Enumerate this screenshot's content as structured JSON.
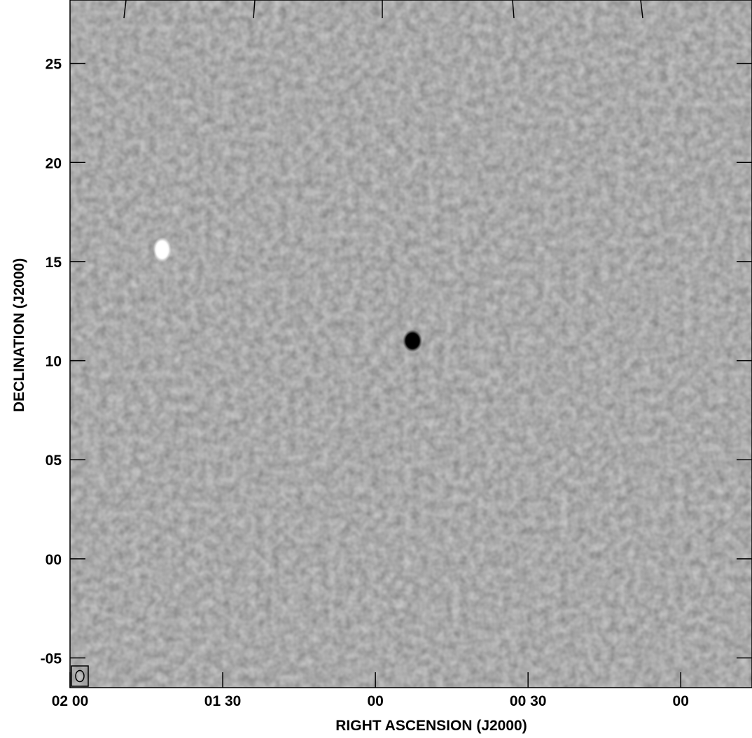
{
  "chart_data": {
    "type": "heatmap",
    "title": "",
    "xlabel": "RIGHT ASCENSION (J2000)",
    "ylabel": "DECLINATION (J2000)",
    "x_ticks": [
      {
        "label": "02 00",
        "ra_seconds": 120
      },
      {
        "label": "01 30",
        "ra_seconds": 90
      },
      {
        "label": "00",
        "ra_seconds": 60
      },
      {
        "label": "00 30",
        "ra_seconds": 30
      },
      {
        "label": "00",
        "ra_seconds": 0
      }
    ],
    "y_ticks": [
      {
        "label": "25",
        "arcmin": 25
      },
      {
        "label": "20",
        "arcmin": 20
      },
      {
        "label": "15",
        "arcmin": 15
      },
      {
        "label": "10",
        "arcmin": 10
      },
      {
        "label": "05",
        "arcmin": 5
      },
      {
        "label": "00",
        "arcmin": 0
      },
      {
        "label": "-05",
        "arcmin": -5
      }
    ],
    "xlim_ra_seconds": [
      120,
      -14
    ],
    "ylim_arcmin": [
      -6.5,
      28.2
    ],
    "colormap": "inverted grayscale",
    "background_color": "#bebebe",
    "sources": [
      {
        "name": "bright-source",
        "ra_seconds": 52.7,
        "dec_arcmin": 11.0,
        "tone": "dark",
        "color": "#000000"
      },
      {
        "name": "negative-source",
        "ra_seconds": 101.9,
        "dec_arcmin": 15.6,
        "tone": "light",
        "color": "#ffffff"
      }
    ],
    "beam": {
      "location": "bottom-left",
      "shape": "ellipse"
    }
  }
}
